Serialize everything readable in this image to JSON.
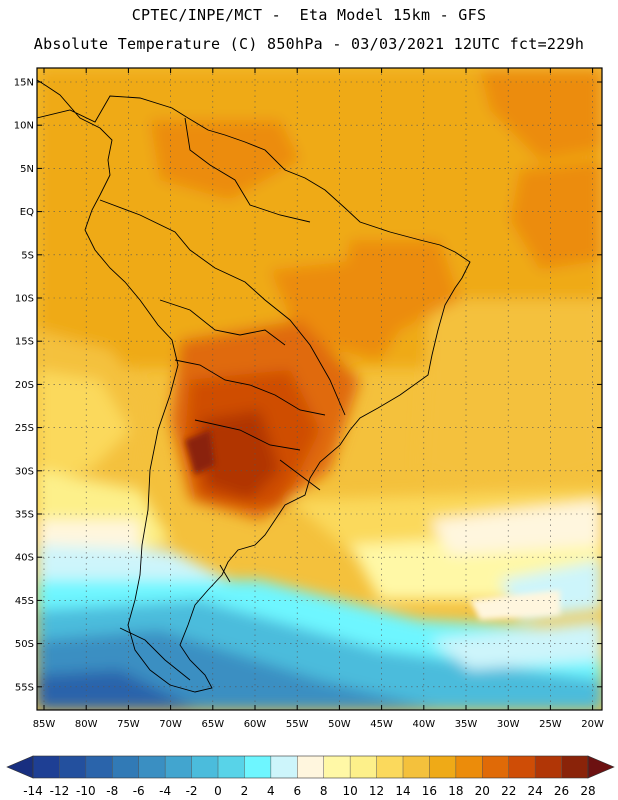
{
  "header": {
    "line1": "CPTEC/INPE/MCT -  Eta Model 15km - GFS",
    "line2": "Absolute Temperature (C) 850hPa - 03/03/2021 12UTC fct=229h"
  },
  "axes": {
    "lat_labels": [
      "15N",
      "10N",
      "5N",
      "EQ",
      "5S",
      "10S",
      "15S",
      "20S",
      "25S",
      "30S",
      "35S",
      "40S",
      "45S",
      "50S",
      "55S"
    ],
    "lon_labels": [
      "85W",
      "80W",
      "75W",
      "70W",
      "65W",
      "60W",
      "55W",
      "50W",
      "45W",
      "40W",
      "35W",
      "30W",
      "25W",
      "20W"
    ]
  },
  "colorbar": {
    "labels": [
      "-14",
      "-12",
      "-10",
      "-8",
      "-6",
      "-4",
      "-2",
      "0",
      "2",
      "4",
      "6",
      "8",
      "10",
      "12",
      "14",
      "16",
      "18",
      "20",
      "22",
      "24",
      "26",
      "28"
    ],
    "colors": [
      "#1e3f94",
      "#23509e",
      "#2a64ab",
      "#317ab6",
      "#3a8fc2",
      "#42a5cf",
      "#4bbcdc",
      "#58d3e8",
      "#6ef6ff",
      "#cdf5fb",
      "#fff6de",
      "#fff8a6",
      "#fdf08a",
      "#fbd95c",
      "#f4c13c",
      "#efaa17",
      "#ec8c0a",
      "#e06a07",
      "#cf4d06",
      "#b13606",
      "#8a2309"
    ],
    "under_color": "#182f80",
    "over_color": "#6c1111"
  }
}
